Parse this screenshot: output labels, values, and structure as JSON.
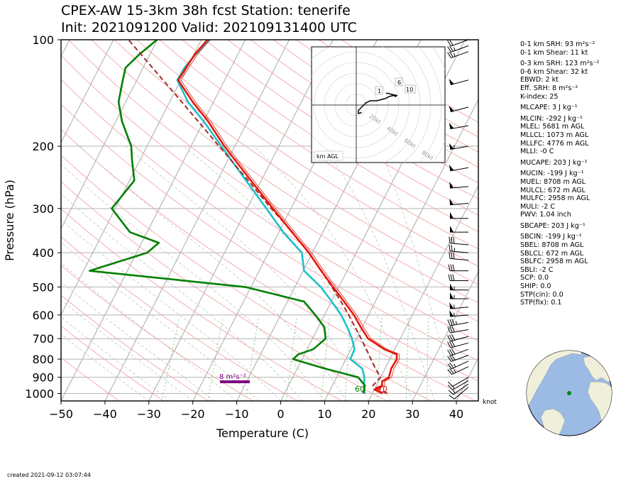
{
  "title_line1": "CPEX-AW 15-3km  38h fcst  Station: tenerife",
  "title_line2": "Init: 2021091200  Valid: 202109131400 UTC",
  "footer_created": "created 2021-09-12 03:07:44",
  "params": [
    "0-1 km SRH: 93 m²s⁻²",
    "0-1 km Shear: 11 kt",
    "0-3 km SRH: 123 m²s⁻²",
    "0-6 km Shear: 32 kt",
    "EBWD: 2 kt",
    "Eff. SRH: 8 m²s⁻²",
    "K-index: 25",
    "MLCAPE: 3 J kg⁻¹",
    "MLCIN: -292 J kg⁻¹",
    "MLEL: 5681 m AGL",
    "MLLCL: 1073 m AGL",
    "MLLFC: 4776 m AGL",
    "MLLI: -0 C",
    "MUCAPE: 203 J kg⁻¹",
    "MUCIN: -199 J kg⁻¹",
    "MUEL: 8708 m AGL",
    "MULCL: 672 m AGL",
    "MULFC: 2958 m AGL",
    "MULI: -2 C",
    "PWV: 1.04 inch",
    "SBCAPE: 203 J kg⁻¹",
    "SBCIN: -199 J kg⁻¹",
    "SBEL: 8708 m AGL",
    "SBLCL: 672 m AGL",
    "SBLFC: 2958 m AGL",
    "SBLI: -2 C",
    "SCP: 0.0",
    "SHIP: 0.0",
    "STP(cin): 0.0",
    "STP(fix): 0.1"
  ],
  "chart_data": {
    "type": "line",
    "title": "CPEX-AW 15-3km  38h fcst  Station: tenerife",
    "subtitle": "Init: 2021091200  Valid: 202109131400 UTC",
    "xlabel": "Temperature (C)",
    "ylabel": "Pressure (hPa)",
    "xlim": [
      -50,
      45
    ],
    "ylim": [
      1050,
      100
    ],
    "y_scale": "log",
    "skew": true,
    "x_ticks": [
      -50,
      -40,
      -30,
      -20,
      -10,
      0,
      10,
      20,
      30,
      40
    ],
    "y_ticks": [
      100,
      200,
      300,
      400,
      500,
      600,
      700,
      800,
      900,
      1000
    ],
    "wind_unit_label": "knot",
    "surface_temp_label": "70",
    "surface_dewpoint_label": "60",
    "srh_label": "8 m²s⁻²",
    "series": [
      {
        "name": "Temperature",
        "color": "#e0190f",
        "points": [
          [
            1000,
            22.3
          ],
          [
            975,
            20.0
          ],
          [
            950,
            21.3
          ],
          [
            925,
            20.8
          ],
          [
            900,
            21.9
          ],
          [
            850,
            21.4
          ],
          [
            800,
            21.6
          ],
          [
            775,
            21.0
          ],
          [
            750,
            17.6
          ],
          [
            700,
            12.7
          ],
          [
            650,
            9.7
          ],
          [
            600,
            6.7
          ],
          [
            550,
            2.9
          ],
          [
            500,
            -1.3
          ],
          [
            450,
            -5.9
          ],
          [
            400,
            -10.8
          ],
          [
            350,
            -17.0
          ],
          [
            300,
            -24.1
          ],
          [
            250,
            -32.4
          ],
          [
            200,
            -42.4
          ],
          [
            170,
            -49.0
          ],
          [
            150,
            -54.7
          ],
          [
            130,
            -60.6
          ],
          [
            120,
            -60.2
          ],
          [
            110,
            -59.8
          ],
          [
            100,
            -58.6
          ]
        ]
      },
      {
        "name": "Parcel",
        "color": "#a52a2a",
        "dashed": true,
        "points": [
          [
            1000,
            23.4
          ],
          [
            950,
            19.2
          ],
          [
            900,
            20.0
          ],
          [
            850,
            17.8
          ],
          [
            800,
            15.7
          ],
          [
            750,
            13.5
          ],
          [
            700,
            11.1
          ],
          [
            650,
            8.4
          ],
          [
            600,
            5.5
          ],
          [
            550,
            2.2
          ],
          [
            500,
            -1.6
          ],
          [
            450,
            -5.8
          ],
          [
            400,
            -10.9
          ],
          [
            350,
            -16.9
          ],
          [
            300,
            -24.5
          ],
          [
            250,
            -33.0
          ],
          [
            200,
            -43.6
          ],
          [
            150,
            -57.2
          ],
          [
            100,
            -76.6
          ]
        ]
      },
      {
        "name": "Virtual temperature",
        "color": "#cyan",
        "points": [
          [
            1000,
            18.3
          ],
          [
            950,
            17.2
          ],
          [
            900,
            16.3
          ],
          [
            850,
            14.8
          ],
          [
            800,
            11.0
          ],
          [
            750,
            10.8
          ],
          [
            700,
            9.0
          ],
          [
            650,
            6.6
          ],
          [
            600,
            3.8
          ],
          [
            550,
            0.1
          ],
          [
            500,
            -4.1
          ],
          [
            450,
            -9.8
          ],
          [
            400,
            -12.4
          ],
          [
            350,
            -19.0
          ],
          [
            300,
            -25.6
          ],
          [
            250,
            -33.5
          ],
          [
            200,
            -43.1
          ],
          [
            170,
            -50.0
          ],
          [
            150,
            -55.8
          ],
          [
            130,
            -60.8
          ],
          [
            120,
            -60.6
          ],
          [
            110,
            -59.6
          ],
          [
            100,
            -58.1
          ]
        ]
      },
      {
        "name": "Dewpoint",
        "color": "#008000",
        "points": [
          [
            1000,
            17.9
          ],
          [
            950,
            17.4
          ],
          [
            900,
            14.9
          ],
          [
            850,
            6.2
          ],
          [
            800,
            -2.0
          ],
          [
            775,
            -1.4
          ],
          [
            750,
            1.4
          ],
          [
            700,
            3.0
          ],
          [
            650,
            1.4
          ],
          [
            600,
            -2.1
          ],
          [
            550,
            -6.2
          ],
          [
            500,
            -21.3
          ],
          [
            450,
            -58.6
          ],
          [
            400,
            -47.6
          ],
          [
            375,
            -46.1
          ],
          [
            350,
            -53.9
          ],
          [
            300,
            -60.8
          ],
          [
            250,
            -58.9
          ],
          [
            220,
            -61.7
          ],
          [
            200,
            -63.6
          ],
          [
            170,
            -68.6
          ],
          [
            150,
            -71.6
          ],
          [
            130,
            -73.2
          ],
          [
            120,
            -74.0
          ],
          [
            110,
            -72.4
          ],
          [
            100,
            -70.1
          ]
        ]
      }
    ],
    "wind_barbs": [
      {
        "p": 100,
        "speed": 20,
        "dir": 250
      },
      {
        "p": 104,
        "speed": 25,
        "dir": 250
      },
      {
        "p": 108,
        "speed": 25,
        "dir": 250
      },
      {
        "p": 130,
        "speed": 50,
        "dir": 255
      },
      {
        "p": 155,
        "speed": 50,
        "dir": 255
      },
      {
        "p": 175,
        "speed": 50,
        "dir": 260
      },
      {
        "p": 200,
        "speed": 55,
        "dir": 260
      },
      {
        "p": 230,
        "speed": 50,
        "dir": 260
      },
      {
        "p": 260,
        "speed": 50,
        "dir": 265
      },
      {
        "p": 290,
        "speed": 50,
        "dir": 265
      },
      {
        "p": 320,
        "speed": 50,
        "dir": 270
      },
      {
        "p": 350,
        "speed": 50,
        "dir": 270
      },
      {
        "p": 380,
        "speed": 30,
        "dir": 275
      },
      {
        "p": 400,
        "speed": 25,
        "dir": 275
      },
      {
        "p": 420,
        "speed": 30,
        "dir": 275
      },
      {
        "p": 450,
        "speed": 30,
        "dir": 270
      },
      {
        "p": 480,
        "speed": 30,
        "dir": 270
      },
      {
        "p": 510,
        "speed": 55,
        "dir": 270
      },
      {
        "p": 540,
        "speed": 55,
        "dir": 270
      },
      {
        "p": 570,
        "speed": 55,
        "dir": 265
      },
      {
        "p": 600,
        "speed": 55,
        "dir": 265
      },
      {
        "p": 630,
        "speed": 35,
        "dir": 260
      },
      {
        "p": 660,
        "speed": 30,
        "dir": 260
      },
      {
        "p": 690,
        "speed": 30,
        "dir": 255
      },
      {
        "p": 720,
        "speed": 30,
        "dir": 255
      },
      {
        "p": 750,
        "speed": 30,
        "dir": 250
      },
      {
        "p": 780,
        "speed": 30,
        "dir": 250
      },
      {
        "p": 810,
        "speed": 25,
        "dir": 245
      },
      {
        "p": 840,
        "speed": 25,
        "dir": 245
      },
      {
        "p": 900,
        "speed": 10,
        "dir": 240
      },
      {
        "p": 920,
        "speed": 15,
        "dir": 240
      },
      {
        "p": 940,
        "speed": 15,
        "dir": 235
      },
      {
        "p": 960,
        "speed": 10,
        "dir": 230
      }
    ],
    "hodograph": {
      "rings_kt": [
        20,
        40,
        60,
        80
      ],
      "ring_labels": [
        "20kt",
        "40kt",
        "60kt",
        "80kt"
      ],
      "height_labels": [
        "1",
        "6",
        "10"
      ],
      "legend": "km AGL",
      "trace_uv_kt": [
        [
          5,
          -7
        ],
        [
          2,
          -8
        ],
        [
          2,
          -5
        ],
        [
          6,
          -1
        ],
        [
          9,
          2
        ],
        [
          13,
          4
        ],
        [
          19,
          4
        ],
        [
          23,
          5
        ],
        [
          27,
          6
        ],
        [
          31,
          8
        ],
        [
          35,
          9
        ],
        [
          37,
          8
        ],
        [
          38,
          9
        ],
        [
          33,
          10
        ],
        [
          30,
          11
        ],
        [
          28,
          11
        ]
      ]
    }
  }
}
